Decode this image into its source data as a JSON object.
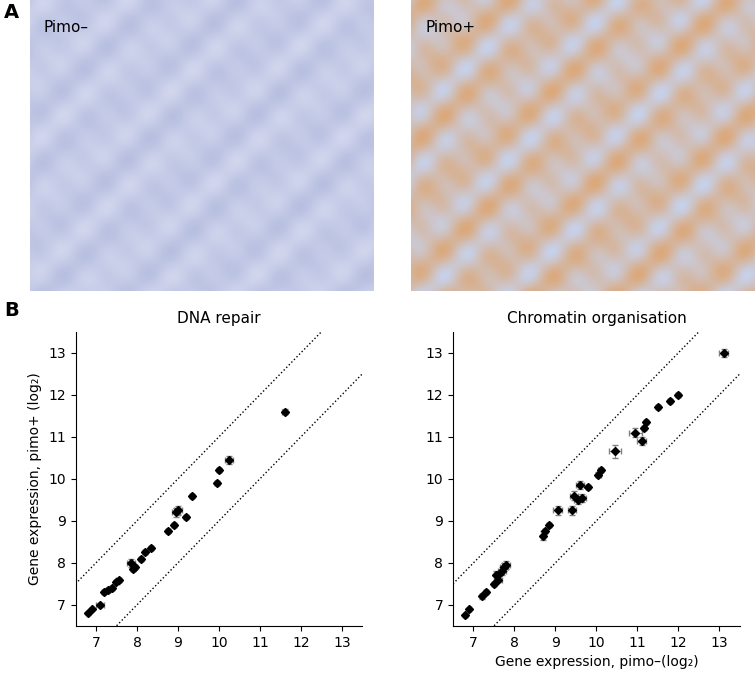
{
  "figure": {
    "panel_labels": [
      "A",
      "B"
    ],
    "images": [
      {
        "label": "Pimo–"
      },
      {
        "label": "Pimo+"
      }
    ]
  },
  "chart_data": [
    {
      "type": "scatter",
      "title": "DNA repair",
      "x_label": "",
      "y_label": "Gene expression, pimo+ (log₂)",
      "xlim": [
        6.5,
        13.5
      ],
      "ylim": [
        6.5,
        13.5
      ],
      "xticks": [
        7,
        8,
        9,
        10,
        11,
        12,
        13
      ],
      "yticks": [
        7,
        8,
        9,
        10,
        11,
        12,
        13
      ],
      "fold_lines": [
        1,
        -1
      ],
      "color": "#000000",
      "marker": "D",
      "line_style": "dotted",
      "x": [
        6.8,
        6.9,
        7.1,
        7.2,
        7.3,
        7.4,
        7.5,
        7.55,
        7.85,
        7.9,
        7.95,
        8.1,
        8.2,
        8.35,
        8.75,
        8.9,
        8.95,
        9.0,
        9.2,
        9.35,
        9.95,
        10.0,
        10.25,
        11.6
      ],
      "values": [
        6.8,
        6.9,
        7.0,
        7.3,
        7.35,
        7.4,
        7.55,
        7.6,
        8.0,
        7.85,
        7.9,
        8.1,
        8.25,
        8.35,
        8.75,
        8.9,
        9.2,
        9.25,
        9.1,
        9.6,
        9.9,
        10.2,
        10.45,
        11.6
      ],
      "x_errors": [
        0.03,
        0.03,
        0.1,
        0.05,
        0.05,
        0.05,
        0.05,
        0.05,
        0.1,
        0.05,
        0.05,
        0.05,
        0.05,
        0.05,
        0.05,
        0.05,
        0.1,
        0.1,
        0.05,
        0.05,
        0.05,
        0.05,
        0.1,
        0.05
      ],
      "y_errors": [
        0.03,
        0.03,
        0.05,
        0.05,
        0.05,
        0.05,
        0.05,
        0.05,
        0.1,
        0.05,
        0.05,
        0.05,
        0.05,
        0.05,
        0.05,
        0.05,
        0.1,
        0.1,
        0.05,
        0.05,
        0.05,
        0.05,
        0.1,
        0.05
      ]
    },
    {
      "type": "scatter",
      "title": "Chromatin organisation",
      "x_label": "Gene expression, pimo–(log₂)",
      "y_label": "",
      "xlim": [
        6.5,
        13.5
      ],
      "ylim": [
        6.5,
        13.5
      ],
      "xticks": [
        7,
        8,
        9,
        10,
        11,
        12,
        13
      ],
      "yticks": [
        7,
        8,
        9,
        10,
        11,
        12,
        13
      ],
      "fold_lines": [
        1,
        -1
      ],
      "color": "#000000",
      "marker": "D",
      "line_style": "dotted",
      "x": [
        6.8,
        6.9,
        7.2,
        7.3,
        7.5,
        7.55,
        7.6,
        7.65,
        7.7,
        7.75,
        7.8,
        8.7,
        8.75,
        8.85,
        9.05,
        9.4,
        9.45,
        9.55,
        9.6,
        9.65,
        9.8,
        10.05,
        10.1,
        10.45,
        10.95,
        11.1,
        11.15,
        11.2,
        11.5,
        11.8,
        12.0,
        13.1
      ],
      "values": [
        6.75,
        6.9,
        7.2,
        7.3,
        7.5,
        7.7,
        7.6,
        7.75,
        7.8,
        7.9,
        7.95,
        8.65,
        8.75,
        8.9,
        9.25,
        9.25,
        9.6,
        9.5,
        9.85,
        9.55,
        9.8,
        10.1,
        10.2,
        10.65,
        11.1,
        10.9,
        11.2,
        11.35,
        11.7,
        11.85,
        12.0,
        13.0
      ],
      "x_errors": [
        0.03,
        0.03,
        0.05,
        0.05,
        0.05,
        0.05,
        0.1,
        0.05,
        0.1,
        0.1,
        0.1,
        0.05,
        0.05,
        0.05,
        0.1,
        0.1,
        0.1,
        0.1,
        0.1,
        0.1,
        0.05,
        0.05,
        0.05,
        0.15,
        0.15,
        0.1,
        0.05,
        0.05,
        0.05,
        0.05,
        0.05,
        0.1
      ],
      "y_errors": [
        0.03,
        0.03,
        0.05,
        0.05,
        0.05,
        0.1,
        0.05,
        0.05,
        0.1,
        0.1,
        0.1,
        0.1,
        0.05,
        0.05,
        0.1,
        0.1,
        0.1,
        0.1,
        0.1,
        0.1,
        0.05,
        0.05,
        0.05,
        0.15,
        0.1,
        0.1,
        0.05,
        0.05,
        0.05,
        0.05,
        0.05,
        0.1
      ]
    }
  ]
}
